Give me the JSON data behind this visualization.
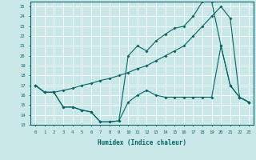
{
  "xlabel": "Humidex (Indice chaleur)",
  "xlim": [
    -0.5,
    23.5
  ],
  "ylim": [
    13,
    25.5
  ],
  "yticks": [
    13,
    14,
    15,
    16,
    17,
    18,
    19,
    20,
    21,
    22,
    23,
    24,
    25
  ],
  "xticks": [
    0,
    1,
    2,
    3,
    4,
    5,
    6,
    7,
    8,
    9,
    10,
    11,
    12,
    13,
    14,
    15,
    16,
    17,
    18,
    19,
    20,
    21,
    22,
    23
  ],
  "bg_color": "#cbe8e8",
  "line_color": "#006666",
  "line_a_x": [
    0,
    1,
    2,
    3,
    4,
    5,
    6,
    7,
    8,
    9,
    10,
    11,
    12,
    13,
    14,
    15,
    16,
    17,
    18,
    19,
    20,
    21,
    22,
    23
  ],
  "line_a_y": [
    17,
    16.3,
    16.3,
    16.5,
    16.7,
    17.0,
    17.2,
    17.5,
    17.7,
    18.0,
    18.3,
    18.7,
    19.0,
    19.5,
    20.0,
    20.5,
    21.0,
    22.0,
    23.0,
    24.0,
    25.0,
    23.8,
    15.8,
    15.3
  ],
  "line_b_x": [
    0,
    1,
    2,
    3,
    4,
    5,
    6,
    7,
    8,
    9,
    10,
    11,
    12,
    13,
    14,
    15,
    16,
    17,
    18,
    19,
    20,
    21,
    22,
    23
  ],
  "line_b_y": [
    17,
    16.3,
    16.3,
    14.8,
    14.8,
    14.5,
    14.3,
    13.3,
    13.3,
    13.4,
    20.0,
    21.0,
    20.5,
    21.5,
    22.2,
    22.8,
    23.0,
    24.0,
    25.5,
    25.5,
    21.0,
    17.0,
    15.8,
    15.3
  ],
  "line_c_x": [
    0,
    1,
    2,
    3,
    4,
    5,
    6,
    7,
    8,
    9,
    10,
    11,
    12,
    13,
    14,
    15,
    16,
    17,
    18,
    19,
    20,
    21,
    22,
    23
  ],
  "line_c_y": [
    17,
    16.3,
    16.3,
    14.8,
    14.8,
    14.5,
    14.3,
    13.3,
    13.3,
    13.4,
    15.3,
    16.0,
    16.5,
    16.0,
    15.8,
    15.8,
    15.8,
    15.8,
    15.8,
    15.8,
    21.0,
    17.0,
    15.8,
    15.3
  ]
}
